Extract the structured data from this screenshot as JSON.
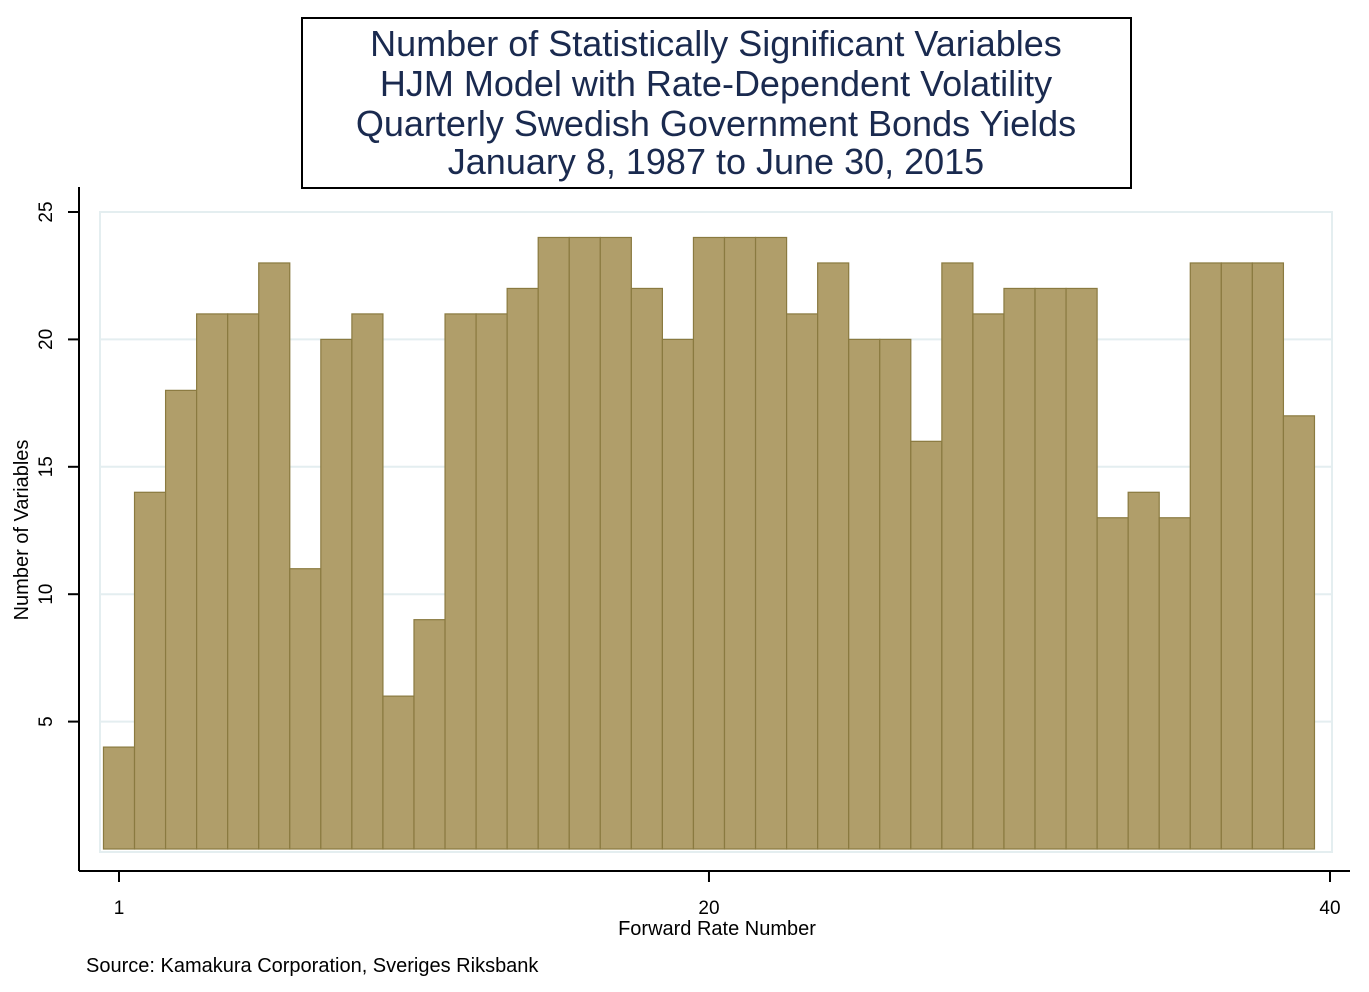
{
  "chart_data": {
    "type": "bar",
    "title_lines": [
      "Number of Statistically Significant Variables",
      "HJM Model with Rate-Dependent Volatility",
      "Quarterly Swedish Government Bonds Yields",
      "January 8, 1987 to June 30, 2015"
    ],
    "xlabel": "Forward Rate Number",
    "ylabel": "Number of Variables",
    "source": "Source: Kamakura Corporation, Sveriges Riksbank",
    "x": [
      1,
      2,
      3,
      4,
      5,
      6,
      7,
      8,
      9,
      10,
      11,
      12,
      13,
      14,
      15,
      16,
      17,
      18,
      19,
      20,
      21,
      22,
      23,
      24,
      25,
      26,
      27,
      28,
      29,
      30,
      31,
      32,
      33,
      34,
      35,
      36,
      37,
      38,
      39
    ],
    "values": [
      4,
      14,
      18,
      21,
      21,
      23,
      11,
      20,
      21,
      6,
      9,
      21,
      21,
      22,
      24,
      24,
      24,
      22,
      20,
      24,
      24,
      24,
      21,
      23,
      20,
      20,
      16,
      23,
      21,
      22,
      22,
      22,
      13,
      14,
      13,
      23,
      23,
      23,
      17
    ],
    "xticks": [
      "1",
      "20",
      "40"
    ],
    "yticks": [
      "5",
      "10",
      "15",
      "20",
      "25"
    ],
    "xlim": [
      1,
      40
    ],
    "ylim": [
      0,
      25
    ],
    "grid": true,
    "bar_color": "#b09e6a",
    "bar_edge_color": "#8a7a40",
    "grid_color": "#e4eef0",
    "title_color": "#1a2a4f"
  }
}
